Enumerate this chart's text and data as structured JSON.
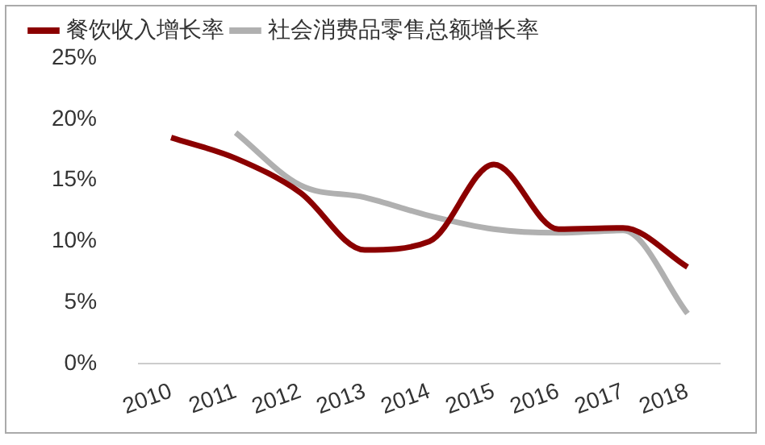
{
  "chart_data": {
    "type": "line",
    "categories": [
      "2010",
      "2011",
      "2012",
      "2013",
      "2014",
      "2015",
      "2016",
      "2017",
      "2018"
    ],
    "series": [
      {
        "name": "餐饮收入增长率",
        "color": "#8b0000",
        "values": [
          18.5,
          16.8,
          14.0,
          9.3,
          10.0,
          16.3,
          11.0,
          11.1,
          7.9
        ]
      },
      {
        "name": "社会消费品零售总额增长率",
        "color": "#b0b0b0",
        "values": [
          null,
          18.9,
          14.6,
          13.6,
          12.1,
          11.0,
          10.7,
          10.9,
          4.1
        ]
      }
    ],
    "ylim": [
      0,
      25
    ],
    "yticks": [
      {
        "value": 0,
        "label": "0%"
      },
      {
        "value": 5,
        "label": "5%"
      },
      {
        "value": 10,
        "label": "10%"
      },
      {
        "value": 15,
        "label": "15%"
      },
      {
        "value": 20,
        "label": "20%"
      },
      {
        "value": 25,
        "label": "25%"
      }
    ],
    "grid": false,
    "legend": "top",
    "marker": "none",
    "line_style": "solid"
  }
}
